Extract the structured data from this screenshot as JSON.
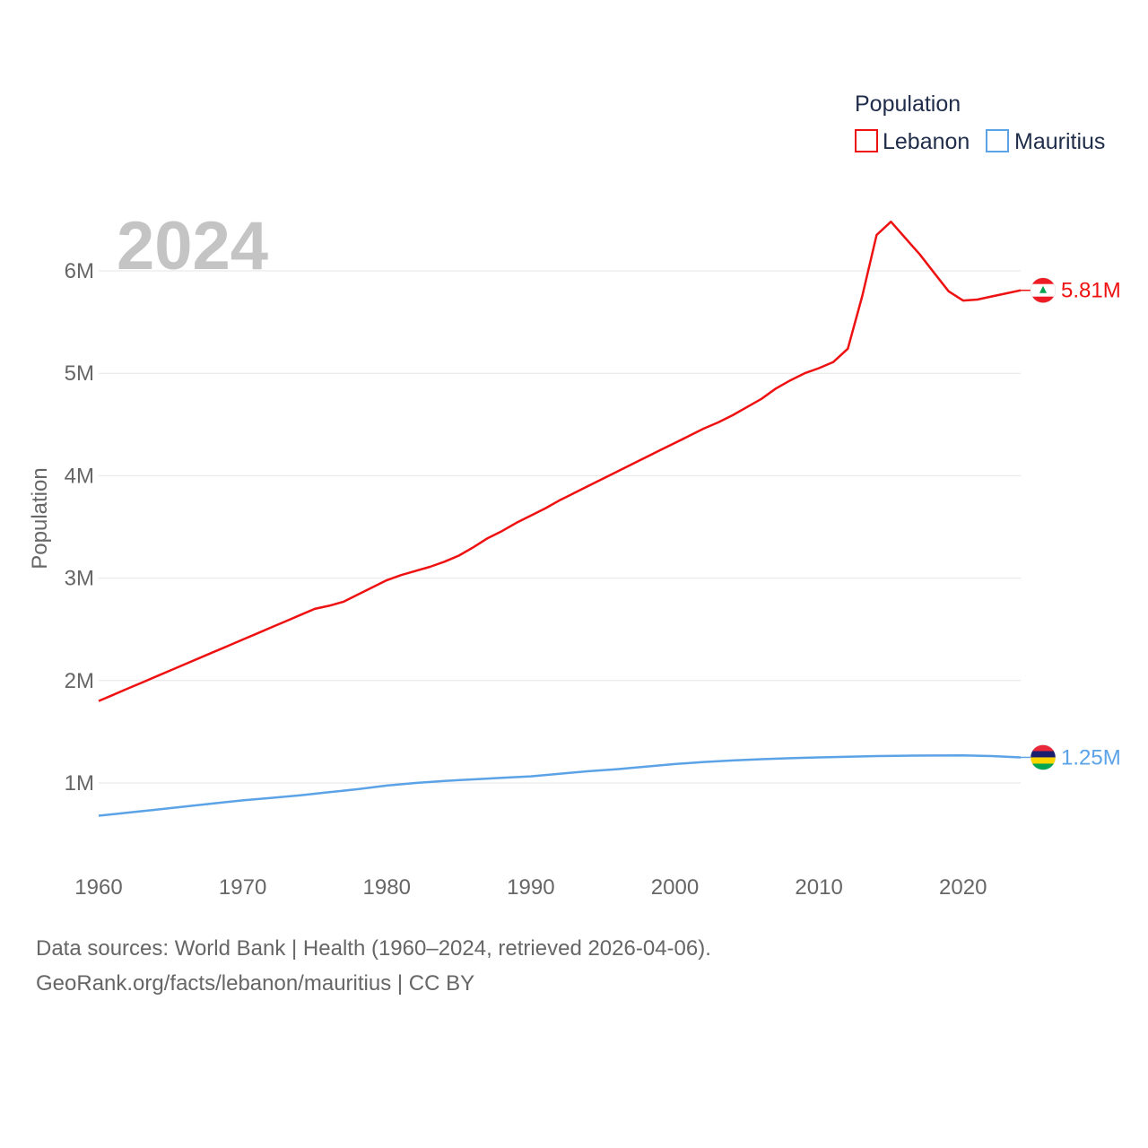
{
  "chart_data": {
    "type": "line",
    "title": "",
    "year_watermark": "2024",
    "xlabel": "",
    "ylabel": "Population",
    "xlim": [
      1960,
      2024
    ],
    "ylim": [
      0.4,
      6.6
    ],
    "x_ticks": [
      1960,
      1970,
      1980,
      1990,
      2000,
      2010,
      2020
    ],
    "y_ticks": [
      1,
      2,
      3,
      4,
      5,
      6
    ],
    "y_tick_labels": [
      "1M",
      "2M",
      "3M",
      "4M",
      "5M",
      "6M"
    ],
    "legend_title": "Population",
    "legend_position": "top-right",
    "series": [
      {
        "name": "Lebanon",
        "color": "#ee1111",
        "end_label": "5.81M",
        "flag_icon": "lebanon-flag-icon",
        "x": [
          1960,
          1961,
          1962,
          1963,
          1964,
          1965,
          1966,
          1967,
          1968,
          1969,
          1970,
          1971,
          1972,
          1973,
          1974,
          1975,
          1976,
          1977,
          1978,
          1979,
          1980,
          1981,
          1982,
          1983,
          1984,
          1985,
          1986,
          1987,
          1988,
          1989,
          1990,
          1991,
          1992,
          1993,
          1994,
          1995,
          1996,
          1997,
          1998,
          1999,
          2000,
          2001,
          2002,
          2003,
          2004,
          2005,
          2006,
          2007,
          2008,
          2009,
          2010,
          2011,
          2012,
          2013,
          2014,
          2015,
          2016,
          2017,
          2018,
          2019,
          2020,
          2021,
          2022,
          2023,
          2024
        ],
        "values": [
          1.8,
          1.86,
          1.92,
          1.98,
          2.04,
          2.1,
          2.16,
          2.22,
          2.28,
          2.34,
          2.4,
          2.46,
          2.52,
          2.58,
          2.64,
          2.7,
          2.73,
          2.77,
          2.84,
          2.91,
          2.98,
          3.03,
          3.07,
          3.11,
          3.16,
          3.22,
          3.3,
          3.39,
          3.46,
          3.54,
          3.61,
          3.68,
          3.76,
          3.83,
          3.9,
          3.97,
          4.04,
          4.11,
          4.18,
          4.25,
          4.32,
          4.39,
          4.46,
          4.52,
          4.59,
          4.67,
          4.75,
          4.85,
          4.93,
          5.0,
          5.05,
          5.11,
          5.24,
          5.75,
          6.35,
          6.48,
          6.32,
          6.16,
          5.98,
          5.8,
          5.71,
          5.72,
          5.75,
          5.78,
          5.81
        ]
      },
      {
        "name": "Mauritius",
        "color": "#5ba3e6",
        "end_label": "1.25M",
        "flag_icon": "mauritius-flag-icon",
        "x": [
          1960,
          1962,
          1964,
          1966,
          1968,
          1970,
          1972,
          1974,
          1976,
          1978,
          1980,
          1982,
          1984,
          1986,
          1988,
          1990,
          1992,
          1994,
          1996,
          1998,
          2000,
          2002,
          2004,
          2006,
          2008,
          2010,
          2012,
          2014,
          2016,
          2018,
          2020,
          2022,
          2024
        ],
        "values": [
          0.68,
          0.71,
          0.74,
          0.77,
          0.8,
          0.83,
          0.855,
          0.88,
          0.91,
          0.94,
          0.975,
          1.0,
          1.02,
          1.035,
          1.05,
          1.065,
          1.09,
          1.115,
          1.135,
          1.16,
          1.185,
          1.205,
          1.22,
          1.232,
          1.242,
          1.25,
          1.257,
          1.263,
          1.266,
          1.268,
          1.27,
          1.263,
          1.25
        ]
      }
    ]
  },
  "footer": {
    "line1": "Data sources: World Bank | Health (1960–2024, retrieved 2026-04-06).",
    "line2": "GeoRank.org/facts/lebanon/mauritius | CC BY"
  }
}
